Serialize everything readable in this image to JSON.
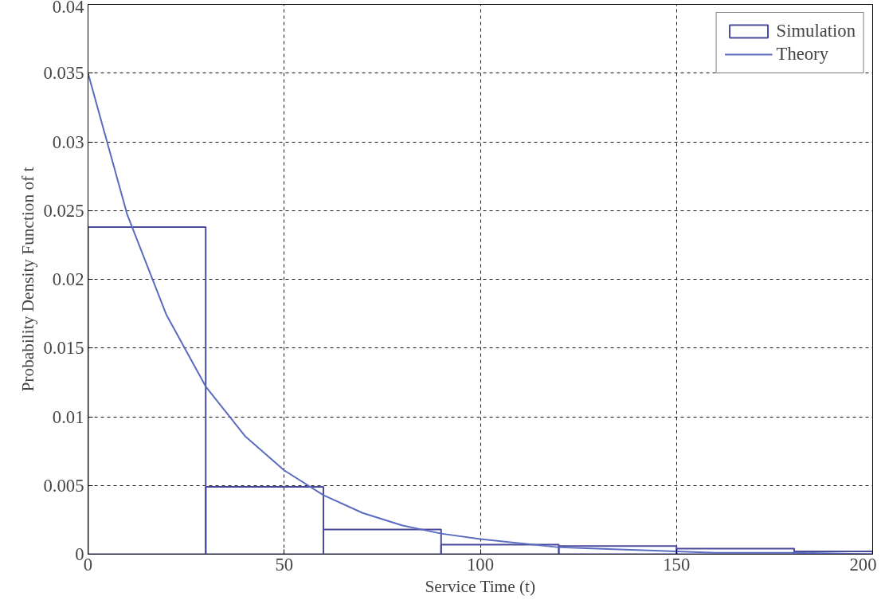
{
  "chart_data": {
    "type": "histogram",
    "xlabel": "Service Time (t)",
    "ylabel": "Probability Density Function of t",
    "bins": [
      0,
      30,
      60,
      90,
      120,
      150,
      180,
      200
    ],
    "series": [
      {
        "name": "Simulation",
        "color": "#4b4b9b",
        "values": [
          0.0238,
          0.0049,
          0.0018,
          0.0007,
          0.0006,
          0.0004,
          0.0002
        ]
      },
      {
        "name": "Theory",
        "type": "line",
        "color": "#5a6cc0",
        "x": [
          0,
          10,
          20,
          30,
          40,
          50,
          60,
          70,
          80,
          90,
          100,
          120,
          140,
          160,
          180,
          200
        ],
        "values": [
          0.035,
          0.0247,
          0.0174,
          0.0122,
          0.0086,
          0.0061,
          0.0043,
          0.003,
          0.0021,
          0.0015,
          0.0011,
          0.0005,
          0.0003,
          0.0001,
          0.0001,
          0.0
        ]
      }
    ],
    "xlim": [
      0,
      200
    ],
    "ylim": [
      0,
      0.04
    ],
    "xticks": [
      0,
      50,
      100,
      150,
      200
    ],
    "yticks": [
      0,
      0.005,
      0.01,
      0.015,
      0.02,
      0.025,
      0.03,
      0.035,
      0.04
    ],
    "grid": true,
    "legend": "top right",
    "marker": "none",
    "line_style": "solid"
  }
}
